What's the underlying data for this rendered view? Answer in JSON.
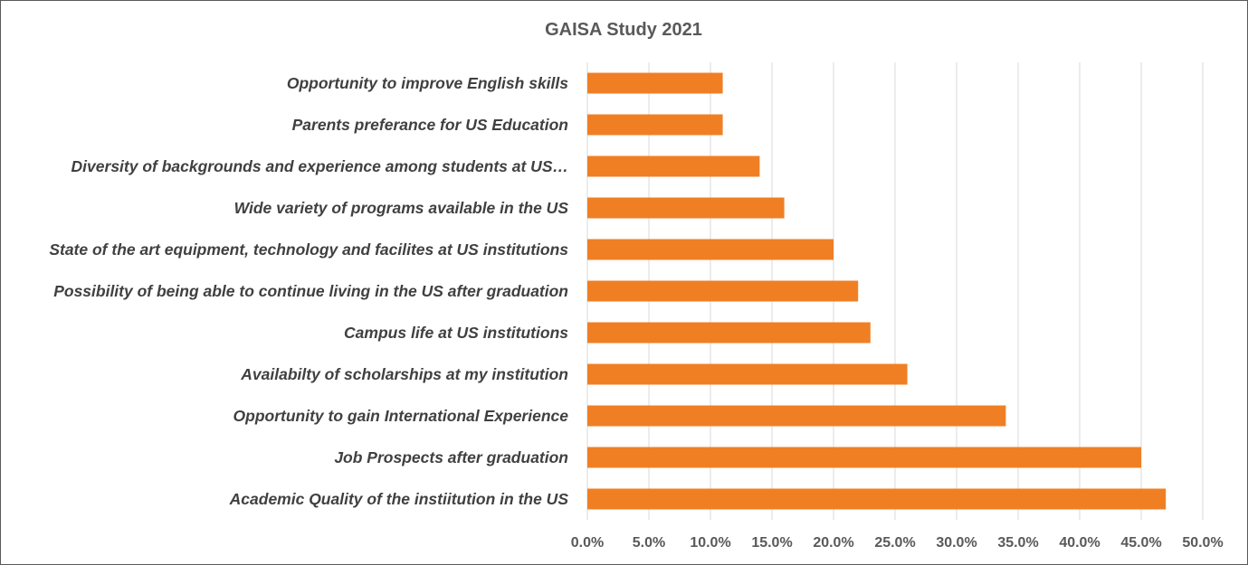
{
  "chart_data": {
    "type": "bar",
    "orientation": "horizontal",
    "title": "GAISA Study 2021",
    "xlabel": "",
    "ylabel": "",
    "xlim": [
      0,
      50
    ],
    "tick_values": [
      0,
      5,
      10,
      15,
      20,
      25,
      30,
      35,
      40,
      45,
      50
    ],
    "tick_labels": [
      "0.0%",
      "5.0%",
      "10.0%",
      "15.0%",
      "20.0%",
      "25.0%",
      "30.0%",
      "35.0%",
      "40.0%",
      "45.0%",
      "50.0%"
    ],
    "grid": true,
    "legend": "none",
    "bar_color": "#f07f24",
    "categories": [
      "Opportunity to improve English skills",
      "Parents preferance for US Education",
      "Diversity of backgrounds and experience among students at US…",
      "Wide variety of programs available in the US",
      "State of the art equipment, technology and facilites at US institutions",
      "Possibility of being able to continue living in the US after graduation",
      "Campus life at US institutions",
      "Availabilty of scholarships at my institution",
      "Opportunity to gain International Experience",
      "Job Prospects after graduation",
      "Academic Quality of the instiitution in the US"
    ],
    "values": [
      11,
      11,
      14,
      16,
      20,
      22,
      23,
      26,
      34,
      45,
      47
    ]
  }
}
